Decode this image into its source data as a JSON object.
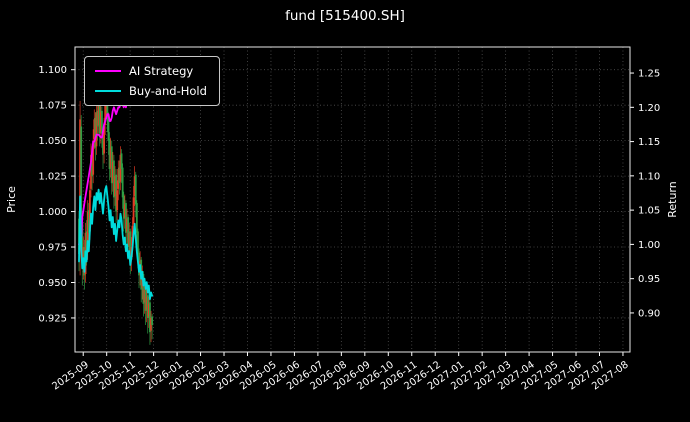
{
  "figure": {
    "background": "#000000",
    "foreground": "#ffffff"
  },
  "chart_data": {
    "type": "line",
    "subtype": "line-plus-candlestick",
    "title": "fund [515400.SH]",
    "grid": {
      "on": true,
      "style": "dotted",
      "color": "#4f4f4f"
    },
    "x_axis": {
      "tick_labels": [
        "2025-09",
        "2025-10",
        "2025-11",
        "2025-12",
        "2026-01",
        "2026-02",
        "2026-03",
        "2026-04",
        "2026-05",
        "2026-06",
        "2026-07",
        "2026-08",
        "2026-09",
        "2026-10",
        "2026-11",
        "2026-12",
        "2027-01",
        "2027-02",
        "2027-03",
        "2027-04",
        "2027-05",
        "2027-06",
        "2027-07",
        "2027-08"
      ],
      "rotation_deg": -35,
      "lim_months": [
        -0.35,
        23.3
      ]
    },
    "y_left": {
      "label": "Price",
      "ticks": [
        0.925,
        0.95,
        0.975,
        1.0,
        1.025,
        1.05,
        1.075,
        1.1
      ],
      "lim": [
        0.901,
        1.116
      ]
    },
    "y_right": {
      "label": "Return",
      "ticks": [
        0.9,
        0.95,
        1.0,
        1.05,
        1.1,
        1.15,
        1.2,
        1.25
      ],
      "lim": [
        0.843,
        1.288
      ]
    },
    "legend": {
      "position": "upper-left",
      "entries": [
        {
          "label": "AI Strategy",
          "color": "#ff00ff"
        },
        {
          "label": "Buy-and-Hold",
          "color": "#00dcdc"
        }
      ]
    },
    "x_start_month_offset": -0.18,
    "trading_days_per_month": 21.5,
    "series": [
      {
        "name": "AI Strategy",
        "axis": "right",
        "color": "#ff00ff",
        "values": [
          1.0,
          1.005,
          1.01,
          1.04,
          1.05,
          1.06,
          1.07,
          1.08,
          1.09,
          1.1,
          1.11,
          1.12,
          1.135,
          1.15,
          1.15,
          1.155,
          1.16,
          1.16,
          1.16,
          1.158,
          1.156,
          1.156,
          1.165,
          1.175,
          1.18,
          1.185,
          1.19,
          1.19,
          1.18,
          1.18,
          1.185,
          1.195,
          1.2,
          1.195,
          1.19,
          1.195,
          1.2,
          1.2,
          1.205,
          1.21,
          1.205,
          1.2,
          1.205,
          1.2,
          1.21,
          1.205,
          1.21,
          1.215,
          1.22,
          1.225,
          1.23,
          1.235,
          1.228,
          1.222,
          1.22,
          1.225,
          1.23,
          1.235,
          1.24,
          1.245,
          1.25,
          1.255,
          1.26,
          1.258,
          1.252,
          1.255,
          1.258,
          1.26
        ]
      },
      {
        "name": "Buy-and-Hold",
        "axis": "right",
        "color": "#00dcdc",
        "values": [
          0.975,
          1.07,
          0.995,
          0.965,
          0.98,
          0.96,
          0.99,
          0.975,
          1.005,
          0.99,
          1.02,
          1.045,
          1.03,
          1.055,
          1.07,
          1.05,
          1.075,
          1.065,
          1.08,
          1.06,
          1.075,
          1.06,
          1.045,
          1.065,
          1.08,
          1.085,
          1.07,
          1.055,
          1.035,
          1.05,
          1.025,
          1.04,
          1.015,
          1.03,
          1.005,
          1.02,
          1.035,
          1.025,
          1.045,
          1.035,
          1.015,
          1.0,
          1.01,
          0.99,
          1.0,
          0.98,
          0.99,
          0.97,
          0.98,
          0.995,
          1.015,
          1.03,
          1.01,
          0.99,
          0.975,
          0.96,
          0.97,
          0.95,
          0.96,
          0.94,
          0.95,
          0.935,
          0.945,
          0.93,
          0.94,
          0.92,
          0.93,
          0.925
        ]
      }
    ],
    "candles": {
      "axis": "left",
      "up_color": "#e23b24",
      "down_color": "#2f9e44",
      "bars_ohlc": [
        [
          0.995,
          1.0,
          0.958,
          0.97
        ],
        [
          0.972,
          1.078,
          0.955,
          1.065
        ],
        [
          1.06,
          1.068,
          0.98,
          0.99
        ],
        [
          0.992,
          0.998,
          0.948,
          0.96
        ],
        [
          0.96,
          0.982,
          0.952,
          0.975
        ],
        [
          0.975,
          0.98,
          0.945,
          0.955
        ],
        [
          0.956,
          0.992,
          0.95,
          0.985
        ],
        [
          0.986,
          0.994,
          0.962,
          0.97
        ],
        [
          0.971,
          1.008,
          0.966,
          1.0
        ],
        [
          1.001,
          1.006,
          0.976,
          0.985
        ],
        [
          0.986,
          1.022,
          0.98,
          1.015
        ],
        [
          1.016,
          1.048,
          1.01,
          1.04
        ],
        [
          1.041,
          1.046,
          1.015,
          1.025
        ],
        [
          1.026,
          1.058,
          1.02,
          1.05
        ],
        [
          1.051,
          1.072,
          1.044,
          1.065
        ],
        [
          1.066,
          1.07,
          1.036,
          1.045
        ],
        [
          1.046,
          1.078,
          1.04,
          1.07
        ],
        [
          1.071,
          1.076,
          1.05,
          1.06
        ],
        [
          1.061,
          1.088,
          1.055,
          1.075
        ],
        [
          1.076,
          1.08,
          1.046,
          1.055
        ],
        [
          1.056,
          1.076,
          1.048,
          1.07
        ],
        [
          1.071,
          1.074,
          1.045,
          1.055
        ],
        [
          1.056,
          1.06,
          1.03,
          1.04
        ],
        [
          1.041,
          1.066,
          1.034,
          1.06
        ],
        [
          1.061,
          1.082,
          1.054,
          1.075
        ],
        [
          1.076,
          1.086,
          1.068,
          1.08
        ],
        [
          1.081,
          1.084,
          1.056,
          1.065
        ],
        [
          1.066,
          1.07,
          1.04,
          1.05
        ],
        [
          1.051,
          1.056,
          1.022,
          1.03
        ],
        [
          1.031,
          1.052,
          1.024,
          1.045
        ],
        [
          1.046,
          1.05,
          1.012,
          1.02
        ],
        [
          1.021,
          1.042,
          1.014,
          1.035
        ],
        [
          1.036,
          1.04,
          1.002,
          1.01
        ],
        [
          1.011,
          1.032,
          1.004,
          1.025
        ],
        [
          1.026,
          1.03,
          0.992,
          1.0
        ],
        [
          1.001,
          1.022,
          0.994,
          1.015
        ],
        [
          1.016,
          1.036,
          1.008,
          1.03
        ],
        [
          1.031,
          1.036,
          1.012,
          1.02
        ],
        [
          1.021,
          1.046,
          1.015,
          1.04
        ],
        [
          1.041,
          1.044,
          1.02,
          1.03
        ],
        [
          1.031,
          1.034,
          1.002,
          1.01
        ],
        [
          1.011,
          1.014,
          0.986,
          0.995
        ],
        [
          0.996,
          1.012,
          0.988,
          1.005
        ],
        [
          1.006,
          1.008,
          0.976,
          0.985
        ],
        [
          0.986,
          1.002,
          0.978,
          0.995
        ],
        [
          0.996,
          0.998,
          0.966,
          0.975
        ],
        [
          0.976,
          0.992,
          0.968,
          0.985
        ],
        [
          0.986,
          0.988,
          0.956,
          0.965
        ],
        [
          0.966,
          0.982,
          0.958,
          0.975
        ],
        [
          0.976,
          0.996,
          0.968,
          0.99
        ],
        [
          0.991,
          1.018,
          0.984,
          1.01
        ],
        [
          1.011,
          1.032,
          1.004,
          1.025
        ],
        [
          1.026,
          1.028,
          0.996,
          1.005
        ],
        [
          1.006,
          1.008,
          0.976,
          0.985
        ],
        [
          0.986,
          0.988,
          0.96,
          0.97
        ],
        [
          0.971,
          0.974,
          0.946,
          0.955
        ],
        [
          0.956,
          0.972,
          0.948,
          0.965
        ],
        [
          0.966,
          0.968,
          0.936,
          0.945
        ],
        [
          0.946,
          0.962,
          0.938,
          0.955
        ],
        [
          0.956,
          0.958,
          0.926,
          0.935
        ],
        [
          0.936,
          0.952,
          0.928,
          0.945
        ],
        [
          0.946,
          0.948,
          0.92,
          0.93
        ],
        [
          0.931,
          0.946,
          0.922,
          0.94
        ],
        [
          0.941,
          0.944,
          0.914,
          0.925
        ],
        [
          0.926,
          0.94,
          0.918,
          0.935
        ],
        [
          0.936,
          0.938,
          0.906,
          0.915
        ],
        [
          0.916,
          0.93,
          0.908,
          0.925
        ],
        [
          0.926,
          0.928,
          0.91,
          0.92
        ]
      ]
    }
  }
}
